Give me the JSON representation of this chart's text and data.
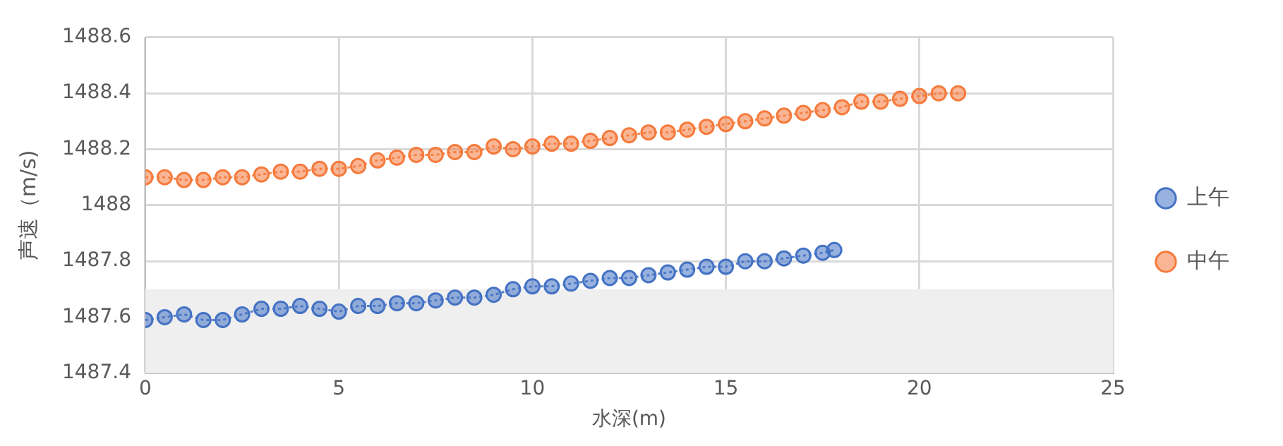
{
  "chart_data": {
    "type": "line",
    "xlabel": "水深(m)",
    "ylabel": "声速（m/s)",
    "xlim": [
      0,
      25
    ],
    "xticks": [
      0,
      5,
      10,
      15,
      20,
      25
    ],
    "ylim": [
      1487.4,
      1488.6
    ],
    "yticks": [
      1487.4,
      1487.6,
      1487.8,
      1488,
      1488.2,
      1488.4,
      1488.6
    ],
    "grid": true,
    "legend": "right",
    "marker": "circle",
    "line_style": "dotted",
    "bands": [
      {
        "axis": "y",
        "from": 1487.4,
        "to": 1487.7,
        "color": "#efefef"
      }
    ],
    "series": [
      {
        "name": "上午",
        "color": "#4472c4",
        "x": [
          0,
          0.5,
          1,
          1.5,
          2,
          2.5,
          3,
          3.5,
          4,
          4.5,
          5,
          5.5,
          6,
          6.5,
          7,
          7.5,
          8,
          8.5,
          9,
          9.5,
          10,
          10.5,
          11,
          11.5,
          12,
          12.5,
          13,
          13.5,
          14,
          14.5,
          15,
          15.5,
          16,
          16.5,
          17,
          17.5,
          17.8
        ],
        "values": [
          1487.59,
          1487.6,
          1487.61,
          1487.59,
          1487.59,
          1487.61,
          1487.63,
          1487.63,
          1487.64,
          1487.63,
          1487.62,
          1487.64,
          1487.64,
          1487.65,
          1487.65,
          1487.66,
          1487.67,
          1487.67,
          1487.68,
          1487.7,
          1487.71,
          1487.71,
          1487.72,
          1487.73,
          1487.74,
          1487.74,
          1487.75,
          1487.76,
          1487.77,
          1487.78,
          1487.78,
          1487.8,
          1487.8,
          1487.81,
          1487.82,
          1487.83,
          1487.84
        ]
      },
      {
        "name": "中午",
        "color": "#f57a3c",
        "x": [
          0,
          0.5,
          1,
          1.5,
          2,
          2.5,
          3,
          3.5,
          4,
          4.5,
          5,
          5.5,
          6,
          6.5,
          7,
          7.5,
          8,
          8.5,
          9,
          9.5,
          10,
          10.5,
          11,
          11.5,
          12,
          12.5,
          13,
          13.5,
          14,
          14.5,
          15,
          15.5,
          16,
          16.5,
          17,
          17.5,
          18,
          18.5,
          19,
          19.5,
          20,
          20.5,
          21
        ],
        "values": [
          1488.1,
          1488.1,
          1488.09,
          1488.09,
          1488.1,
          1488.1,
          1488.11,
          1488.12,
          1488.12,
          1488.13,
          1488.13,
          1488.14,
          1488.16,
          1488.17,
          1488.18,
          1488.18,
          1488.19,
          1488.19,
          1488.21,
          1488.2,
          1488.21,
          1488.22,
          1488.22,
          1488.23,
          1488.24,
          1488.25,
          1488.26,
          1488.26,
          1488.27,
          1488.28,
          1488.29,
          1488.3,
          1488.31,
          1488.32,
          1488.33,
          1488.34,
          1488.35,
          1488.37,
          1488.37,
          1488.38,
          1488.39,
          1488.4,
          1488.4
        ]
      }
    ]
  }
}
